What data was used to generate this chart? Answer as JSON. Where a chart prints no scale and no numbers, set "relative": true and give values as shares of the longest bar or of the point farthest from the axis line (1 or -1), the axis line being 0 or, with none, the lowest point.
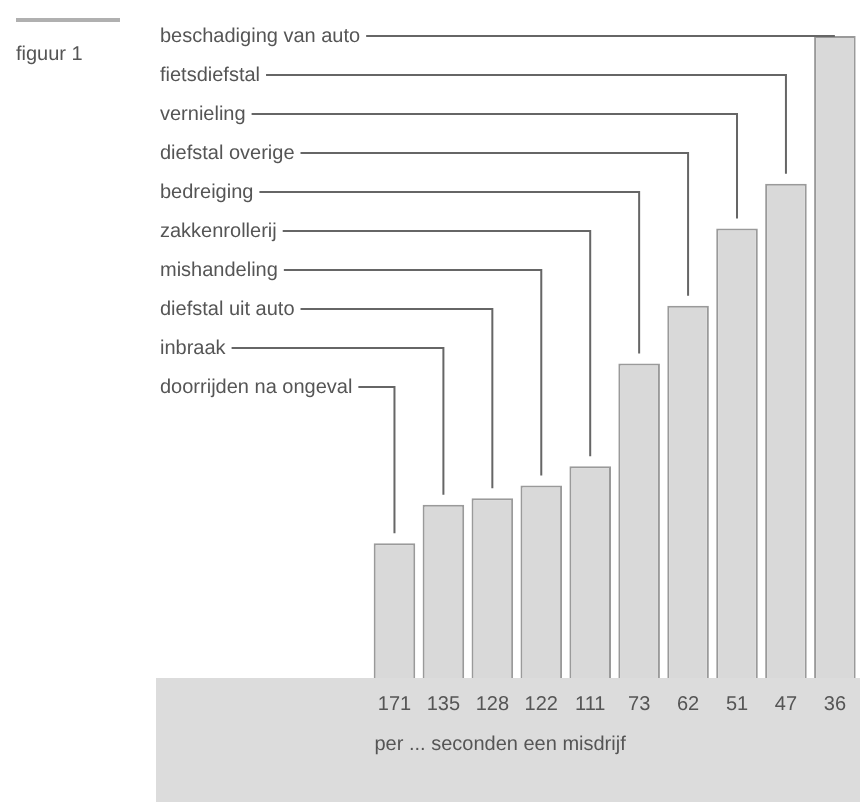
{
  "chart_data": {
    "type": "bar",
    "title": "figuur 1",
    "xlabel": "per ... seconden een misdrijf",
    "categories": [
      "171",
      "135",
      "128",
      "122",
      "111",
      "73",
      "62",
      "51",
      "47",
      "36"
    ],
    "values": [
      0.21,
      0.27,
      0.28,
      0.3,
      0.33,
      0.49,
      0.58,
      0.7,
      0.77,
      1
    ],
    "annotations": [
      "doorrijden na ongeval",
      "inbraak",
      "diefstal uit auto",
      "mishandeling",
      "zakkenrollerij",
      "bedreiging",
      "diefstal overige",
      "vernieling",
      "fietsdiefstal",
      "beschadiging van auto"
    ],
    "color": "#d9d9d9",
    "relative": true,
    "legend": false,
    "grid": false
  }
}
